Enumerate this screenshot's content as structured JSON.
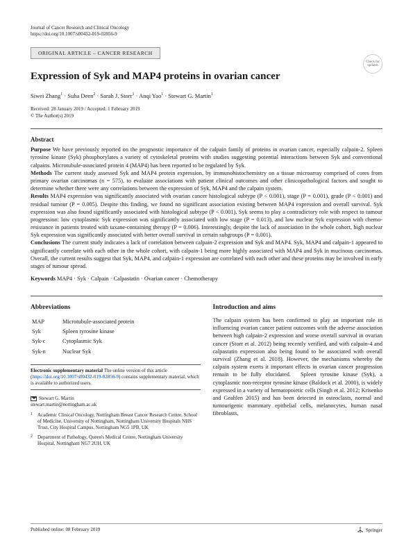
{
  "journal": "Journal of Cancer Research and Clinical Oncology",
  "doi": "https://doi.org/10.1007/s00432-019-02856-9",
  "category": "ORIGINAL ARTICLE – CANCER RESEARCH",
  "checkUpdates": "Check for updates",
  "title": "Expression of Syk and MAP4 proteins in ovarian cancer",
  "authorsHtml": "Siwei Zhang<sup>1</sup> · Suha Deen<sup>2</sup> · Sarah J. Storr<sup>1</sup> · Anqi Yao<sup>1</sup> · Stewart G. Martin<sup>1</sup>",
  "dates": "Received: 28 January 2019 / Accepted: 1 February 2019",
  "copyright": "© The Author(s) 2019",
  "abstractHeading": "Abstract",
  "abstract": {
    "purposeLabel": "Purpose",
    "purpose": " We have previously reported on the prognostic importance of the calpain family of proteins in ovarian cancer, especially calpain-2. Spleen tyrosine kinase (Syk) phosphorylates a variety of cytoskeletal proteins with studies suggesting potential interactions between Syk and conventional calpains. Microtubule-associated protein 4 (MAP4) has been reported to be regulated by Syk.",
    "methodsLabel": "Methods",
    "methods": " The current study assessed Syk and MAP4 protein expression, by immunohistochemistry on a tissue microarray comprised of cores from primary ovarian carcinomas (n = 575), to evaluate associations with patient clinical outcomes and other clinicopathological factors and sought to determine whether there were any correlations between the expression of Syk, MAP4 and the calpain system.",
    "resultsLabel": "Results",
    "results": " MAP4 expression was significantly associated with ovarian cancer histological subtype (P < 0.001), stage (P = 0.001), grade (P < 0.001) and residual tumour (P = 0.005). Despite this finding, we found no significant association existing between MAP4 expression and overall survival. Syk expression was also found significantly associated with histological subtype (P < 0.001). Syk seems to play a contradictory role with respect to tumour progression: low cytoplasmic Syk expression was significantly associated with low stage (P = 0.013), and low nuclear Syk expression with chemo-resistance in patients treated with taxane-containing therapy (P = 0.006). Interestingly, despite the lack of association in the whole cohort, high nuclear Syk expression was significantly associated with better overall survival in certain subgroups (P = 0.001).",
    "conclusionsLabel": "Conclusions",
    "conclusions": " The current study indicates a lack of correlation between calpain-2 expression and Syk and MAP4. Syk, MAP4 and calpain-1 appeared to significantly correlate with each other in the whole cohort, with calpain-1 being more highly associated with MAP4 and Syk in mucinous carcinomas. Overall, the current results suggest that Syk, MAP4, and calpain-1 expression are correlated with each other and these proteins may be involved in early stages of tumour spread."
  },
  "keywordsLabel": "Keywords",
  "keywords": " MAP4 · Syk · Calpain · Calpastatin · Ovarian cancer · Chemotherapy",
  "abbrevHeading": "Abbreviations",
  "abbrev": [
    {
      "k": "MAP",
      "v": "Microtubule-associated protein"
    },
    {
      "k": "Syk",
      "v": "Spleen tyrosine kinase"
    },
    {
      "k": "Syk-c",
      "v": "Cytoplasmic Syk"
    },
    {
      "k": "Syk-n",
      "v": "Nuclear Syk"
    }
  ],
  "supp": {
    "title": "Electronic supplementary material",
    "text1": " The online version of this article (",
    "link": "https://doi.org/10.1007/s00432-019-02856-9",
    "text2": ") contains supplementary material, which is available to authorized users."
  },
  "corrName": "Stewart G. Martin",
  "corrEmail": "stewart.martin@nottingham.ac.uk",
  "affil1": "Academic Clinical Oncology, Nottingham Breast Cancer Research Centre, School of Medicine, University of Nottingham, Nottingham University Hospitals NHS Trust, City Hospital Campus, Nottingham NG5 1PB, UK",
  "affil2": "Department of Pathology, Queen's Medical Centre, Nottingham University Hospital, Nottingham NG7 2UH, UK",
  "introHeading": "Introduction and aims",
  "introText": "The calpain system has been confirmed to play an important role in influencing ovarian cancer patient outcomes with the adverse association between high calpain-2 expression and worse overall survival in ovarian cancer (Storr et al. 2012) being recently verified, and with calpain-4 and calpastatin expression also being found to be associated with overall survival (Zhang et al. 2018). However, the mechanisms whereby the calpain system exerts it important effects in ovarian cancer progression remain to be fully elucidated.\n Spleen tyrosine kinase (Syk), a cytoplasmic non-receptor tyrosine kinase (Baldock et al. 2000), is widely expressed in a variety of hematopoietic cells (Singh et al. 2012; Krisenko and Geahlen 2015) and has been detected in osteoclasts, normal and tumourigenic mammary epithelial cells, melanocytes, human nasal fibroblasts,",
  "pubDate": "Published online: 08 February 2019",
  "publisher": "Springer"
}
